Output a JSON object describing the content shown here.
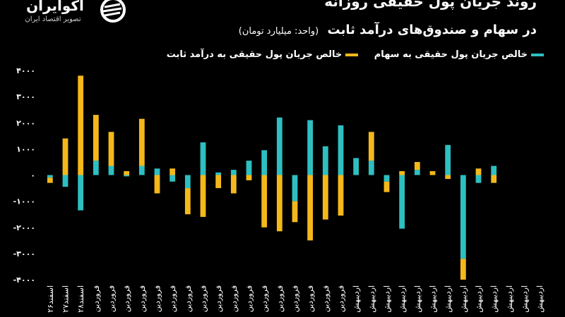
{
  "brand": {
    "name": "آکوایران",
    "tagline": "تصویر اقتصاد ایران"
  },
  "header": {
    "title_line1": "روند جریان پول حقیقی روزانه",
    "title_line2": "در سهام و صندوق‌های درآمد ثابت",
    "unit": "(واحد: میلیارد تومان)"
  },
  "colors": {
    "background": "#000000",
    "equity": "#2ebfc1",
    "fixed_income": "#f4b81b",
    "axis_text": "#ffffff"
  },
  "chart_data": {
    "type": "bar",
    "stacked": true,
    "categories": [
      "اسفند۲۶",
      "اسفند۲۷",
      "اسفند۲۸",
      "فروردین",
      "فروردین",
      "فروردین",
      "فروردین",
      "فروردین",
      "فروردین",
      "فروردین",
      "فروردین",
      "فروردین",
      "فروردین",
      "فروردین",
      "فروردین",
      "فروردین",
      "فروردین",
      "فروردین",
      "فروردین",
      "فروردین",
      "اردیبهش",
      "اردیبهش",
      "اردیبهش",
      "اردیبهش",
      "اردیبهش",
      "اردیبهش",
      "اردیبهش",
      "اردیبهش",
      "اردیبهش",
      "اردیبهش",
      "اردیبهش",
      "اردیبهش",
      "اردیبهش"
    ],
    "series": [
      {
        "name": "خالص جریان پول حقیقی به سهام",
        "color": "#2ebfc1",
        "values": [
          -100,
          -450,
          -1350,
          550,
          350,
          -50,
          350,
          250,
          -250,
          -500,
          1250,
          100,
          200,
          550,
          950,
          2200,
          -1000,
          2100,
          1100,
          1900,
          650,
          550,
          -250,
          -2050,
          200,
          0,
          1150,
          -3200,
          -300,
          350,
          0,
          0,
          0
        ]
      },
      {
        "name": "خالص جریان پول حقیقی به درآمد ثابت",
        "color": "#f4b81b",
        "values": [
          -200,
          1400,
          3800,
          1750,
          1300,
          150,
          1800,
          -700,
          250,
          -1000,
          -1600,
          -500,
          -700,
          -200,
          -2000,
          -2150,
          -800,
          -2500,
          -1700,
          -1550,
          0,
          1100,
          -400,
          150,
          300,
          150,
          -150,
          -800,
          250,
          -300,
          0,
          0,
          0
        ]
      }
    ],
    "ylim": [
      -4000,
      4000
    ],
    "yticks": [
      -4000,
      -3000,
      -2000,
      -1000,
      0,
      1000,
      2000,
      3000,
      4000
    ],
    "ytick_labels": [
      "-۴۰۰۰",
      "-۳۰۰۰",
      "-۲۰۰۰",
      "-۱۰۰۰",
      "۰",
      "۱۰۰۰",
      "۲۰۰۰",
      "۳۰۰۰",
      "۴۰۰۰"
    ],
    "grid": false,
    "legend_position": "top-right"
  }
}
